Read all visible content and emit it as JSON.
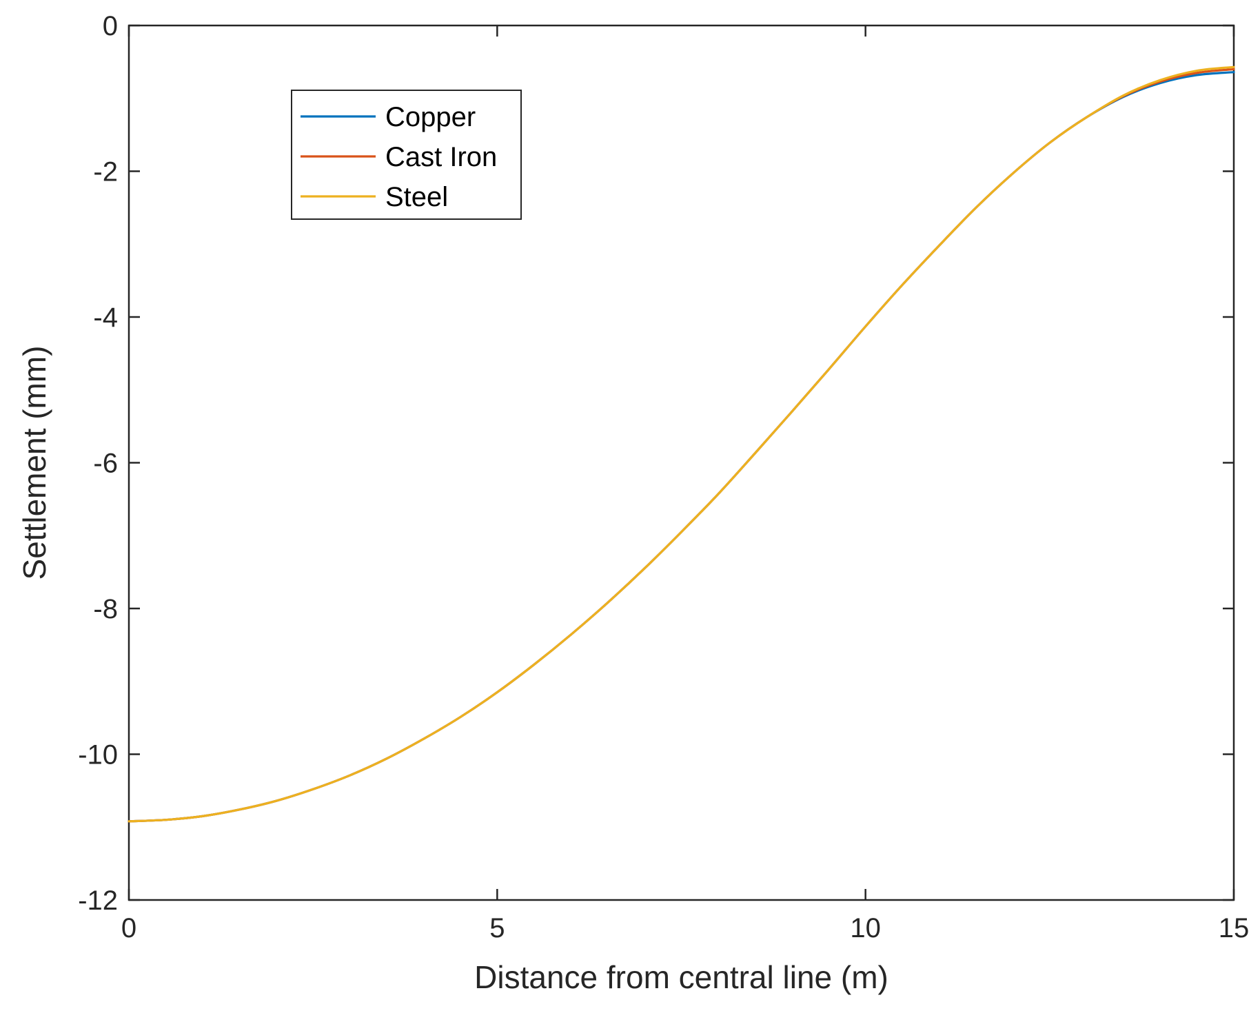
{
  "chart_data": {
    "type": "line",
    "title": "",
    "xlabel": "Distance from central line (m)",
    "ylabel": "Settlement (mm)",
    "xlim": [
      0,
      15
    ],
    "ylim": [
      -12,
      0
    ],
    "xticks": [
      0,
      5,
      10,
      15
    ],
    "yticks": [
      -12,
      -10,
      -8,
      -6,
      -4,
      -2,
      0
    ],
    "xtick_labels": [
      "0",
      "5",
      "10",
      "15"
    ],
    "ytick_labels": [
      "-12",
      "-10",
      "-8",
      "-6",
      "-4",
      "-2",
      "0"
    ],
    "grid": false,
    "legend": {
      "position": "top-left-inside"
    },
    "x": [
      0,
      0.5,
      1,
      1.5,
      2,
      2.5,
      3,
      3.5,
      4,
      4.5,
      5,
      5.5,
      6,
      6.5,
      7,
      7.5,
      8,
      8.5,
      9,
      9.5,
      10,
      10.5,
      11,
      11.5,
      12,
      12.5,
      13,
      13.5,
      14,
      14.5,
      15
    ],
    "series": [
      {
        "name": "Copper",
        "color": "#0072BD",
        "values": [
          -10.92,
          -10.9,
          -10.85,
          -10.76,
          -10.64,
          -10.48,
          -10.29,
          -10.06,
          -9.79,
          -9.49,
          -9.15,
          -8.77,
          -8.36,
          -7.92,
          -7.45,
          -6.95,
          -6.43,
          -5.87,
          -5.3,
          -4.72,
          -4.13,
          -3.56,
          -3.02,
          -2.5,
          -2.03,
          -1.61,
          -1.26,
          -0.98,
          -0.79,
          -0.68,
          -0.64
        ]
      },
      {
        "name": "Cast Iron",
        "color": "#D95319",
        "values": [
          -10.92,
          -10.9,
          -10.85,
          -10.76,
          -10.64,
          -10.48,
          -10.29,
          -10.06,
          -9.79,
          -9.49,
          -9.15,
          -8.77,
          -8.36,
          -7.92,
          -7.45,
          -6.95,
          -6.43,
          -5.87,
          -5.3,
          -4.72,
          -4.13,
          -3.56,
          -3.02,
          -2.5,
          -2.03,
          -1.61,
          -1.26,
          -0.97,
          -0.77,
          -0.65,
          -0.6
        ]
      },
      {
        "name": "Steel",
        "color": "#EDB120",
        "values": [
          -10.92,
          -10.9,
          -10.85,
          -10.76,
          -10.64,
          -10.48,
          -10.29,
          -10.06,
          -9.79,
          -9.49,
          -9.15,
          -8.77,
          -8.36,
          -7.92,
          -7.45,
          -6.95,
          -6.43,
          -5.87,
          -5.3,
          -4.72,
          -4.13,
          -3.56,
          -3.02,
          -2.5,
          -2.03,
          -1.61,
          -1.26,
          -0.96,
          -0.75,
          -0.62,
          -0.57
        ]
      }
    ]
  }
}
